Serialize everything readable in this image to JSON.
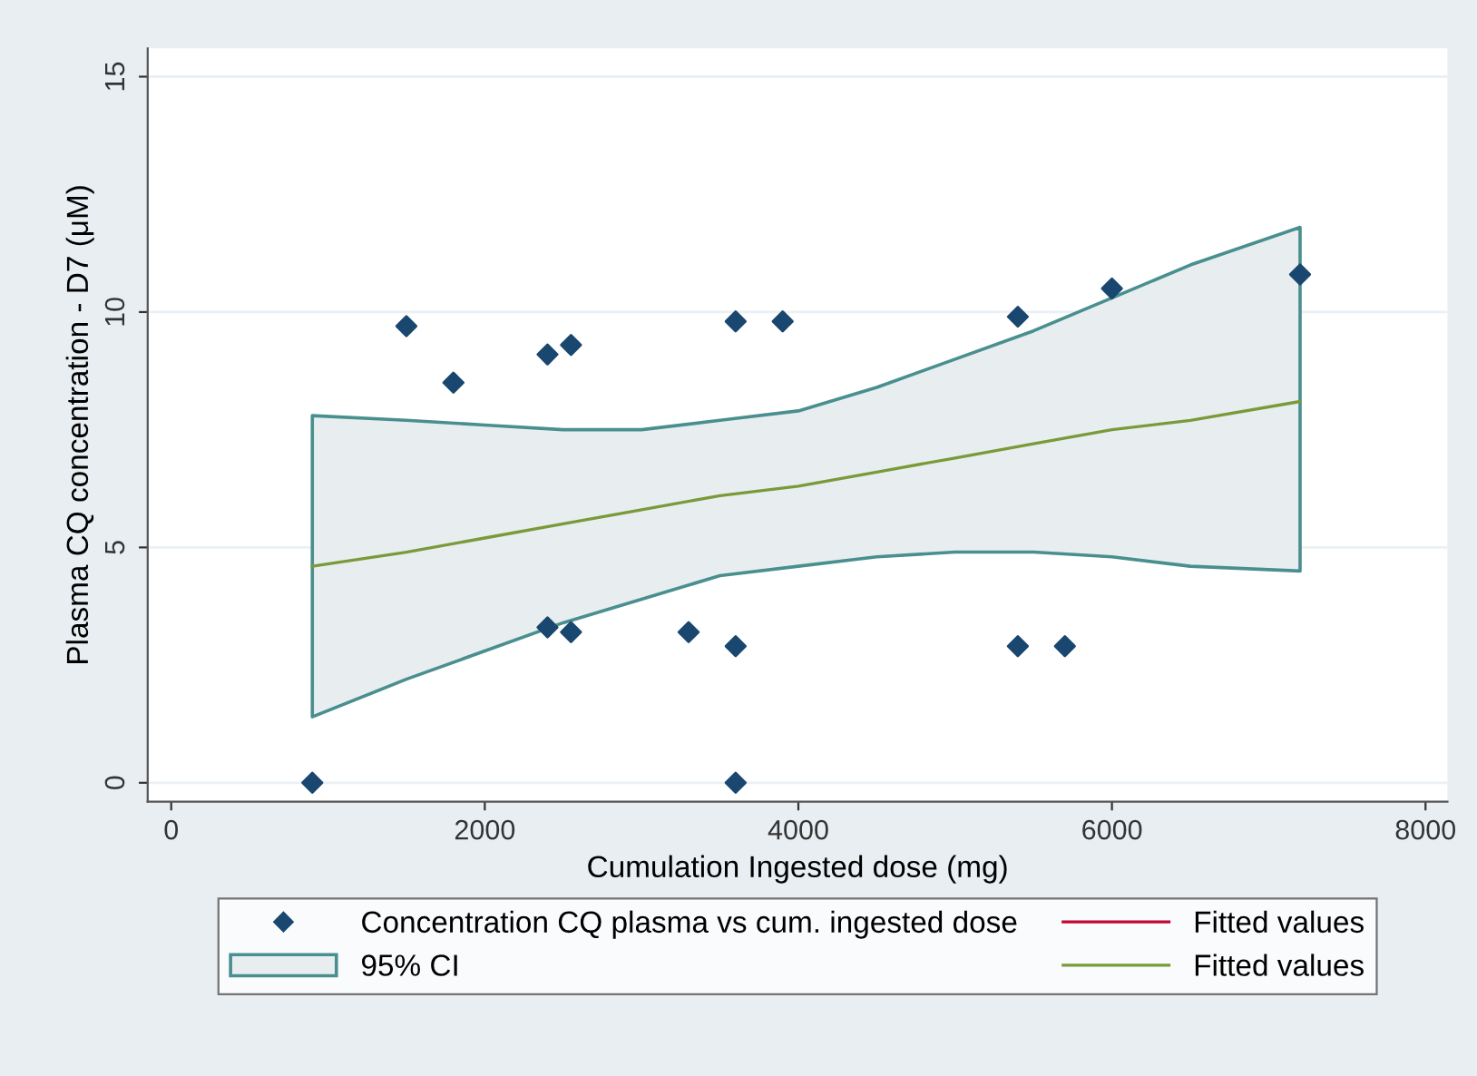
{
  "chart_data": {
    "type": "scatter",
    "xlabel": "Cumulation Ingested dose (mg)",
    "ylabel": "Plasma CQ concentration - D7 (μM)",
    "annotations": [
      "95% CI"
    ],
    "xlim": [
      -150,
      8140
    ],
    "ylim": [
      -0.4,
      15.6
    ],
    "xticks": [
      0,
      2000,
      4000,
      6000,
      8000
    ],
    "yticks": [
      0,
      5,
      10,
      15
    ],
    "grid": "y",
    "legend": "bottom",
    "marker": "diamond",
    "series": [
      {
        "name": "Concentration CQ plasma vs cum. ingested dose",
        "color": "#1a476f",
        "x": [
          900,
          1500,
          1800,
          2400,
          2550,
          2400,
          2550,
          3300,
          3600,
          3600,
          3600,
          3900,
          5400,
          6000,
          7200,
          5400,
          5700
        ],
        "values": [
          0,
          9.7,
          8.5,
          9.1,
          9.3,
          3.3,
          3.2,
          3.2,
          2.9,
          9.8,
          0,
          9.8,
          9.9,
          10.5,
          10.8,
          2.9,
          2.9
        ]
      },
      {
        "name": "Fitted values",
        "type": "line",
        "marker": "none",
        "color": "#c10534"
      },
      {
        "name": "Fitted values",
        "type": "line",
        "marker": "none",
        "color": "#7a9a3a",
        "x": [
          900,
          1500,
          2000,
          2500,
          3000,
          3500,
          4000,
          4500,
          5000,
          5500,
          6000,
          6500,
          7200
        ],
        "values": [
          4.6,
          4.9,
          5.2,
          5.5,
          5.8,
          6.1,
          6.3,
          6.6,
          6.9,
          7.2,
          7.5,
          7.7,
          8.1
        ],
        "lower": [
          1.4,
          2.2,
          2.8,
          3.4,
          3.9,
          4.4,
          4.6,
          4.8,
          4.9,
          4.9,
          4.8,
          4.6,
          4.5
        ],
        "upper": [
          7.8,
          7.7,
          7.6,
          7.5,
          7.5,
          7.7,
          7.9,
          8.4,
          9.0,
          9.6,
          10.3,
          11.0,
          11.8
        ]
      }
    ]
  }
}
